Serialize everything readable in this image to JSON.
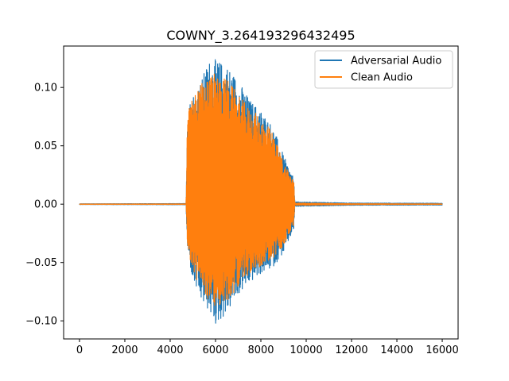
{
  "chart_data": {
    "type": "line",
    "title": "COWNY_3.264193296432495",
    "xlabel": "",
    "ylabel": "",
    "xlim": [
      -700,
      16700
    ],
    "ylim": [
      -0.1155,
      0.1355
    ],
    "xticks": [
      0,
      2000,
      4000,
      6000,
      8000,
      10000,
      12000,
      14000,
      16000
    ],
    "xtick_labels": [
      "0",
      "2000",
      "4000",
      "6000",
      "8000",
      "10000",
      "12000",
      "14000",
      "16000"
    ],
    "yticks": [
      -0.1,
      -0.05,
      0.0,
      0.05,
      0.1
    ],
    "ytick_labels": [
      "−0.10",
      "−0.05",
      "0.00",
      "0.05",
      "0.10"
    ],
    "legend_position": "upper right",
    "grid": false,
    "series": [
      {
        "name": "Adversarial Audio",
        "color": "#1f77b4",
        "description_points": {
          "x": [
            0,
            4700,
            4760,
            5000,
            5400,
            5700,
            6000,
            6500,
            7000,
            7500,
            8000,
            8500,
            9000,
            9450,
            9500,
            12000,
            16000
          ],
          "upper": [
            0.0003,
            0.0005,
            0.085,
            0.095,
            0.108,
            0.124,
            0.124,
            0.12,
            0.107,
            0.09,
            0.081,
            0.068,
            0.042,
            0.022,
            0.002,
            0.001,
            0.0008
          ],
          "lower": [
            -0.0003,
            -0.0005,
            -0.04,
            -0.067,
            -0.085,
            -0.092,
            -0.104,
            -0.094,
            -0.078,
            -0.068,
            -0.06,
            -0.055,
            -0.042,
            -0.022,
            -0.002,
            -0.001,
            -0.0008
          ]
        }
      },
      {
        "name": "Clean Audio",
        "color": "#ff7f0e",
        "description_points": {
          "x": [
            0,
            4700,
            4760,
            5000,
            5400,
            5700,
            6000,
            6500,
            7000,
            7500,
            8000,
            8500,
            9000,
            9450,
            9500,
            12000,
            16000
          ],
          "upper": [
            0.0001,
            0.0002,
            0.08,
            0.092,
            0.105,
            0.111,
            0.112,
            0.108,
            0.094,
            0.082,
            0.075,
            0.062,
            0.037,
            0.02,
            0.001,
            0.0004,
            0.0002
          ],
          "lower": [
            -0.0001,
            -0.0002,
            -0.035,
            -0.06,
            -0.075,
            -0.082,
            -0.089,
            -0.085,
            -0.07,
            -0.06,
            -0.053,
            -0.048,
            -0.036,
            -0.02,
            -0.001,
            -0.0004,
            -0.0002
          ]
        }
      }
    ]
  },
  "legend": {
    "entries": [
      "Adversarial Audio",
      "Clean Audio"
    ]
  }
}
